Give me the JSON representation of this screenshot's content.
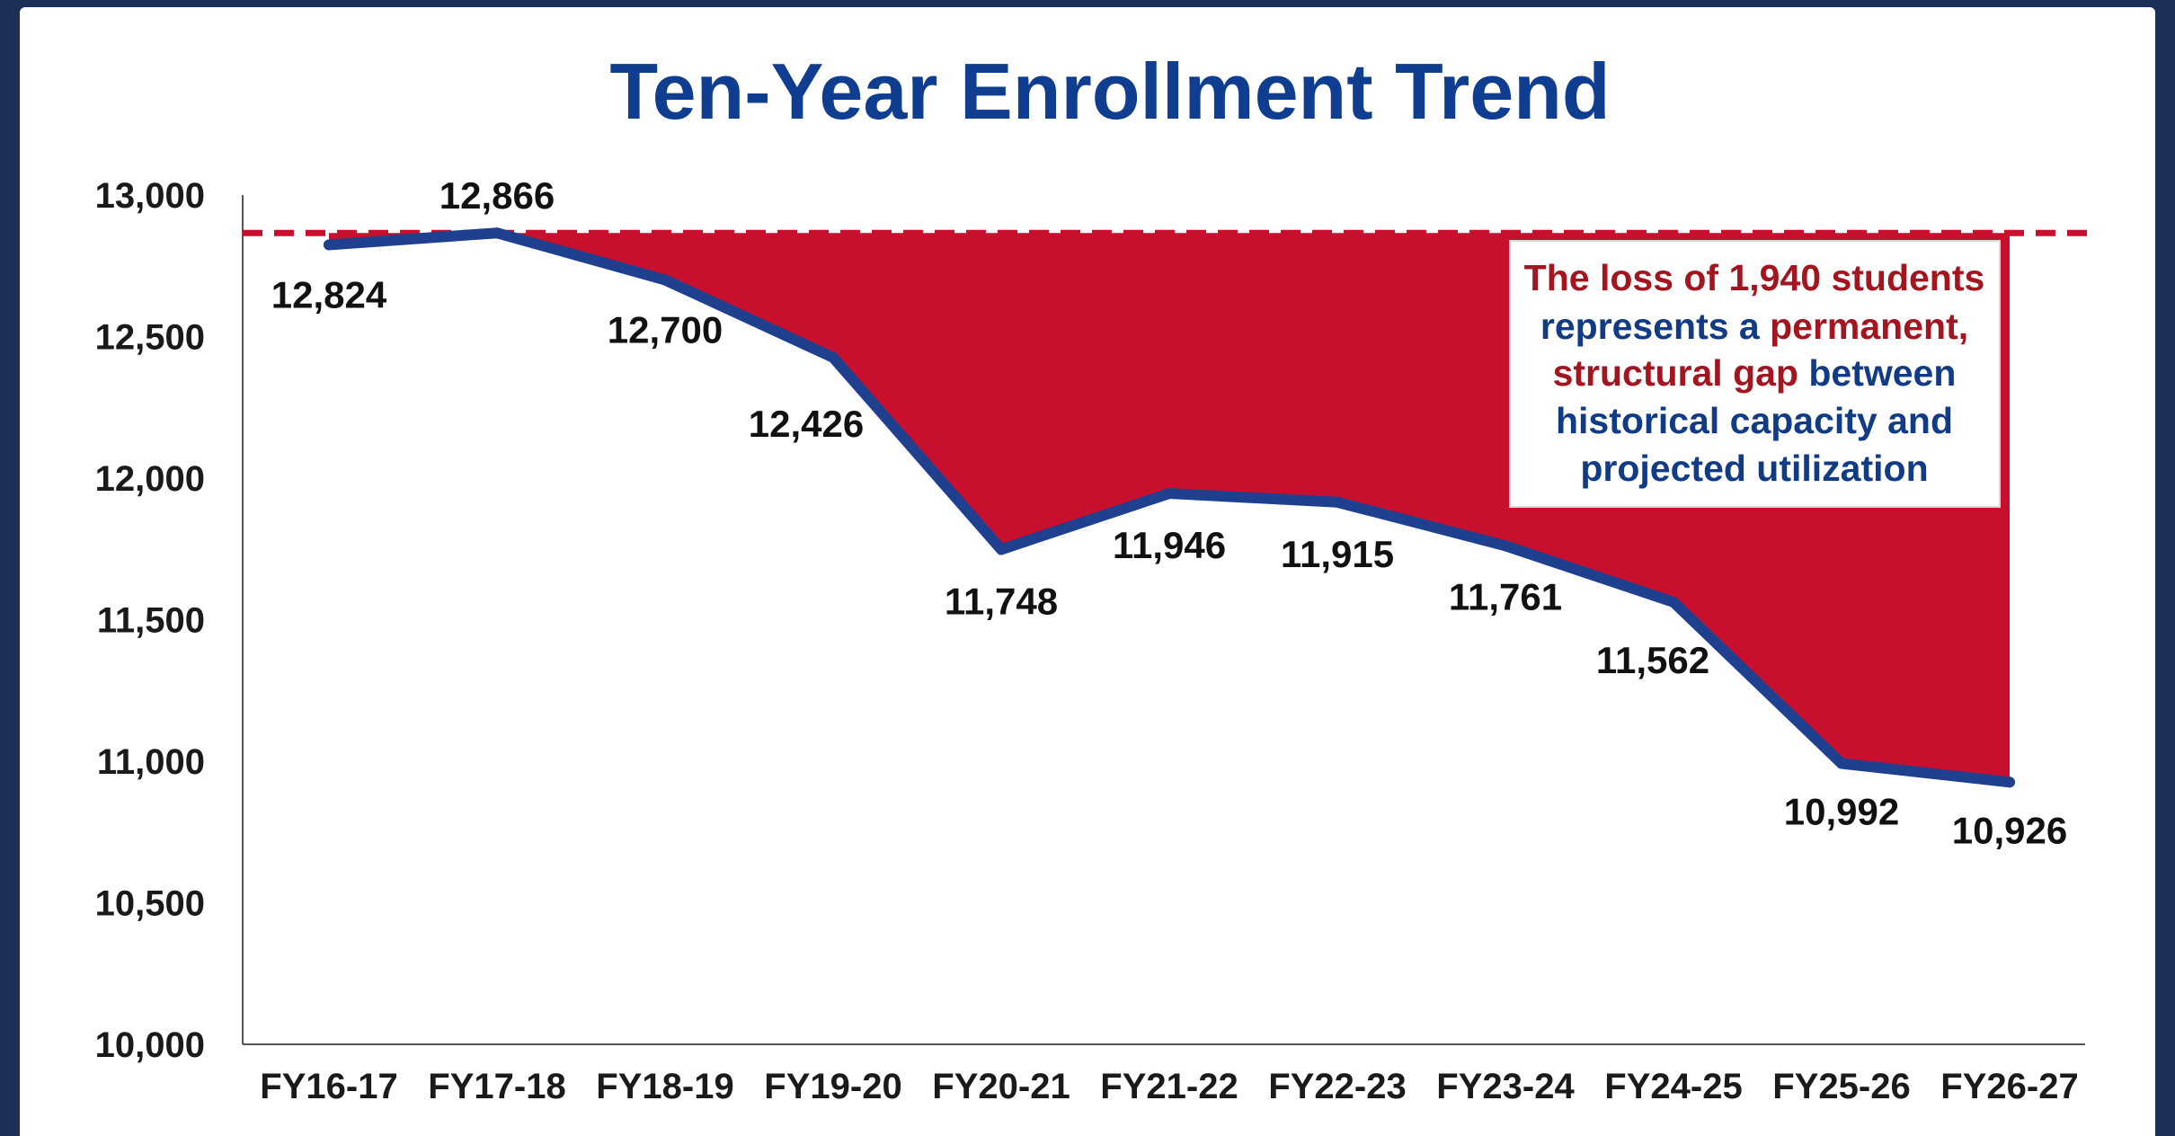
{
  "chart_data": {
    "type": "line",
    "title": "Ten-Year Enrollment Trend",
    "xlabel": "",
    "ylabel": "",
    "categories": [
      "FY16-17",
      "FY17-18",
      "FY18-19",
      "FY19-20",
      "FY20-21",
      "FY21-22",
      "FY22-23",
      "FY23-24",
      "FY24-25",
      "FY25-26",
      "FY26-27"
    ],
    "values": [
      12824,
      12866,
      12700,
      12426,
      11748,
      11946,
      11915,
      11761,
      11562,
      10992,
      10926
    ],
    "data_labels": [
      "12,824",
      "12,866",
      "12,700",
      "12,426",
      "11,748",
      "11,946",
      "11,915",
      "11,761",
      "11,562",
      "10,992",
      "10,926"
    ],
    "ylim": [
      10000,
      13000
    ],
    "yticks": [
      10000,
      10500,
      11000,
      11500,
      12000,
      12500,
      13000
    ],
    "ytick_labels": [
      "10,000",
      "10,500",
      "11,000",
      "11,500",
      "12,000",
      "12,500",
      "13,000"
    ],
    "reference_line": {
      "value": 12866,
      "style": "dashed",
      "color": "#c8102e"
    },
    "fill_between_reference_and_line": true,
    "line_color": "#1f3f8f",
    "fill_color": "#c8102e",
    "grid": false,
    "annotation": {
      "lines": [
        [
          {
            "text": "The loss of 1,940 students",
            "color": "red"
          }
        ],
        [
          {
            "text": "represents a ",
            "color": "blue"
          },
          {
            "text": "permanent,",
            "color": "red"
          }
        ],
        [
          {
            "text": "structural gap",
            "color": "red"
          },
          {
            "text": " between",
            "color": "blue"
          }
        ],
        [
          {
            "text": "historical capacity and",
            "color": "blue"
          }
        ],
        [
          {
            "text": "projected utilization",
            "color": "blue"
          }
        ]
      ]
    }
  }
}
